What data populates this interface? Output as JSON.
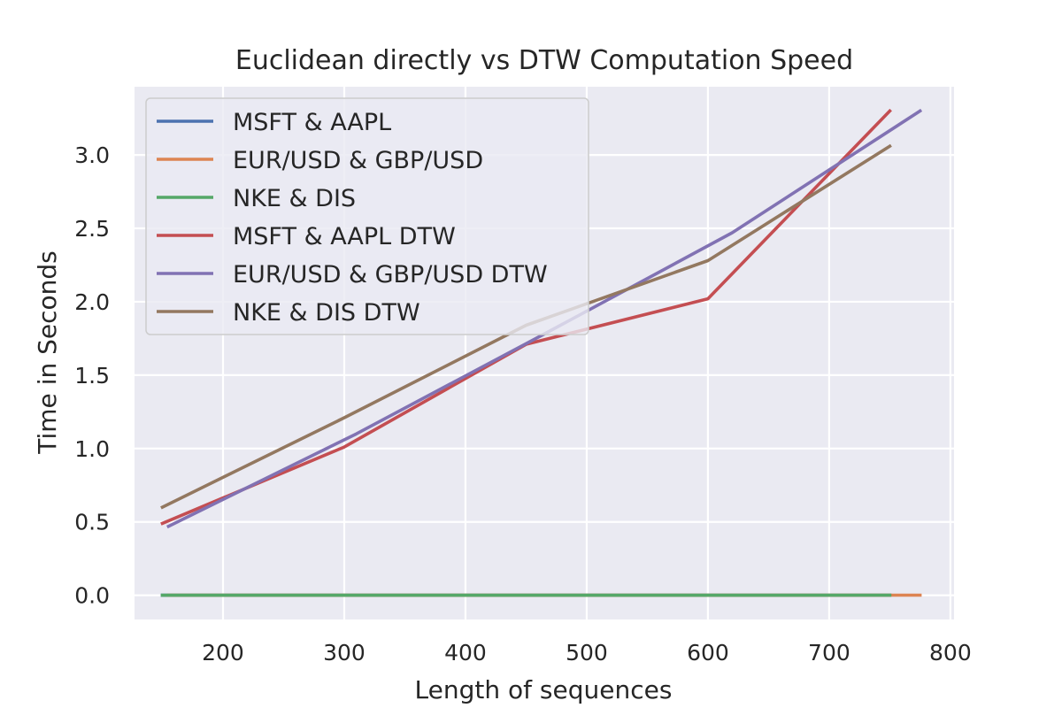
{
  "chart_data": {
    "type": "line",
    "title": "Euclidean directly vs DTW Computation Speed",
    "xlabel": "Length of sequences",
    "ylabel": "Time in Seconds",
    "xlim": [
      127,
      803
    ],
    "ylim": [
      -0.165,
      3.465
    ],
    "xticks": [
      200,
      300,
      400,
      500,
      600,
      700,
      800
    ],
    "yticks": [
      0.0,
      0.5,
      1.0,
      1.5,
      2.0,
      2.5,
      3.0
    ],
    "ytick_labels": [
      "0.0",
      "0.5",
      "1.0",
      "1.5",
      "2.0",
      "2.5",
      "3.0"
    ],
    "grid": true,
    "background": "#eaeaf2",
    "legend_position": "upper-left",
    "series": [
      {
        "name": "MSFT & AAPL",
        "color": "#4c72b0",
        "x": [
          150,
          300,
          450,
          600,
          750
        ],
        "y": [
          0.0002,
          0.0003,
          0.0004,
          0.0005,
          0.0006
        ]
      },
      {
        "name": "EUR/USD & GBP/USD",
        "color": "#dd8452",
        "x": [
          155,
          310,
          465,
          620,
          775
        ],
        "y": [
          0.0002,
          0.0003,
          0.0004,
          0.0005,
          0.0006
        ]
      },
      {
        "name": "NKE & DIS",
        "color": "#55a868",
        "x": [
          150,
          300,
          450,
          600,
          750
        ],
        "y": [
          0.0002,
          0.0003,
          0.0004,
          0.0005,
          0.0006
        ]
      },
      {
        "name": "MSFT & AAPL DTW",
        "color": "#c44e52",
        "x": [
          150,
          300,
          450,
          600,
          750
        ],
        "y": [
          0.49,
          1.01,
          1.71,
          2.02,
          3.3
        ]
      },
      {
        "name": "EUR/USD & GBP/USD DTW",
        "color": "#8172b3",
        "x": [
          155,
          310,
          465,
          620,
          775
        ],
        "y": [
          0.47,
          1.1,
          1.78,
          2.47,
          3.3
        ]
      },
      {
        "name": "NKE & DIS DTW",
        "color": "#937860",
        "x": [
          150,
          300,
          450,
          600,
          750
        ],
        "y": [
          0.6,
          1.21,
          1.84,
          2.28,
          3.06
        ]
      }
    ]
  }
}
